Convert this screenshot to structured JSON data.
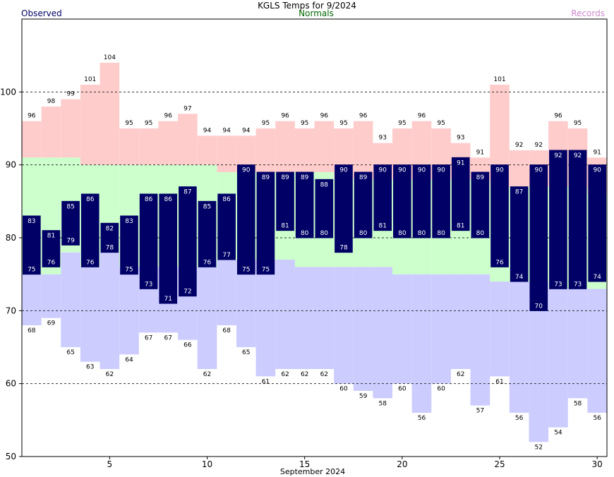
{
  "header": {
    "title": "KGLS Temps for 9/2024",
    "legend_observed": "Observed",
    "legend_normals": "Normals",
    "legend_records": "Records"
  },
  "colors": {
    "observed": "#000066",
    "normal": "#ccffcc",
    "record_high": "#ffcccc",
    "record_low": "#ccccff",
    "observed_text": "#000066",
    "normals_text": "#006600",
    "records_text": "#cc88cc"
  },
  "chart_data": {
    "type": "bar",
    "title": "KGLS Temps for 9/2024",
    "xlabel": "September 2024",
    "ylabel": "",
    "ylim": [
      50,
      110
    ],
    "xlim": [
      0.5,
      30.5
    ],
    "x_ticks": [
      5,
      10,
      15,
      20,
      25,
      30
    ],
    "y_ticks": [
      50,
      60,
      70,
      80,
      90,
      100
    ],
    "dashed_grid": [
      60,
      70,
      80,
      90,
      100
    ],
    "days": [
      1,
      2,
      3,
      4,
      5,
      6,
      7,
      8,
      9,
      10,
      11,
      12,
      13,
      14,
      15,
      16,
      17,
      18,
      19,
      20,
      21,
      22,
      23,
      24,
      25,
      26,
      27,
      28,
      29,
      30
    ],
    "record_high": [
      96,
      98,
      99,
      101,
      104,
      95,
      95,
      96,
      97,
      94,
      94,
      94,
      95,
      96,
      95,
      96,
      95,
      96,
      93,
      95,
      96,
      95,
      93,
      91,
      101,
      92,
      92,
      96,
      95,
      91
    ],
    "record_low": [
      68,
      69,
      65,
      63,
      62,
      64,
      67,
      67,
      66,
      62,
      68,
      65,
      61,
      62,
      62,
      62,
      60,
      59,
      58,
      60,
      56,
      60,
      62,
      57,
      61,
      56,
      52,
      54,
      58,
      56
    ],
    "normal_high": [
      91,
      91,
      91,
      90,
      90,
      90,
      90,
      90,
      90,
      90,
      89,
      89,
      89,
      89,
      89,
      89,
      88,
      88,
      88,
      88,
      88,
      88,
      88,
      88,
      87,
      87,
      87,
      87,
      87,
      86
    ],
    "normal_low": [
      75,
      75,
      78,
      76,
      78,
      76,
      76,
      76,
      76,
      76,
      77,
      77,
      77,
      77,
      76,
      76,
      76,
      76,
      76,
      75,
      75,
      75,
      75,
      75,
      74,
      74,
      74,
      73,
      73,
      73
    ],
    "observed_high": [
      83,
      81,
      85,
      86,
      82,
      83,
      86,
      86,
      87,
      85,
      86,
      90,
      89,
      89,
      89,
      88,
      90,
      89,
      90,
      90,
      90,
      90,
      91,
      89,
      90,
      87,
      90,
      92,
      92,
      90
    ],
    "observed_low": [
      75,
      76,
      79,
      76,
      78,
      75,
      73,
      71,
      72,
      76,
      77,
      75,
      75,
      81,
      80,
      80,
      78,
      80,
      81,
      80,
      80,
      80,
      81,
      80,
      76,
      74,
      70,
      73,
      73,
      74
    ]
  }
}
